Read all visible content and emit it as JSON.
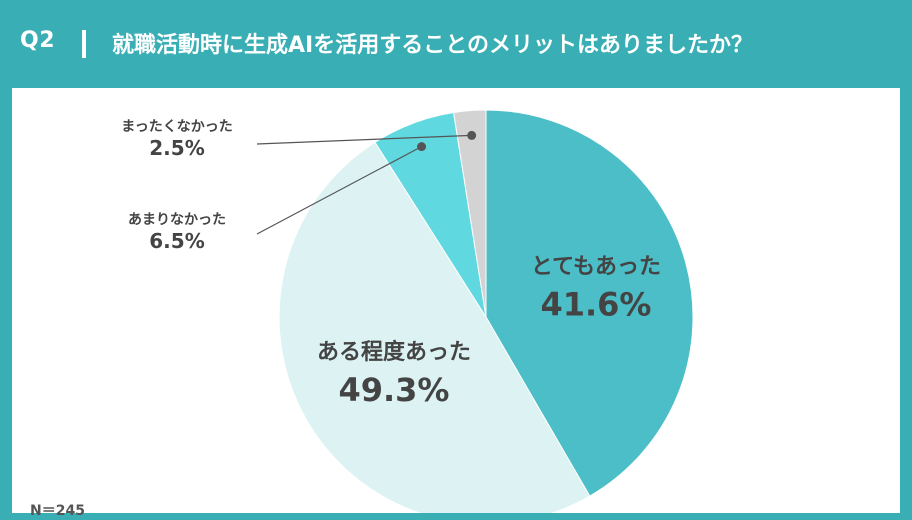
{
  "header": {
    "question_number": "Q2",
    "question": "就職活動時に生成AIを活用することのメリットはありましたか？"
  },
  "sample_size": "N＝245",
  "colors": {
    "header_bg": "#39aeb4",
    "panel_bg": "#ffffff",
    "label_dark": "#444444",
    "label_light": "#ffffff",
    "leader_line": "#555555"
  },
  "chart_data": {
    "type": "pie",
    "start": "12-oclock",
    "direction": "clockwise",
    "slices": [
      {
        "label": "とてもあった",
        "value": 41.6,
        "value_text": "41.6%",
        "color": "#4bbec7",
        "label_style": "inside",
        "label_color": "#444444"
      },
      {
        "label": "ある程度あった",
        "value": 49.3,
        "value_text": "49.3%",
        "color": "#dcf2f3",
        "label_style": "inside",
        "label_color": "#444444"
      },
      {
        "label": "あまりなかった",
        "value": 6.5,
        "value_text": "6.5%",
        "color": "#5fd8e0",
        "label_style": "callout",
        "label_color": "#444444"
      },
      {
        "label": "まったくなかった",
        "value": 2.5,
        "value_text": "2.5%",
        "color": "#d3d3d3",
        "label_style": "callout",
        "label_color": "#444444"
      }
    ]
  }
}
